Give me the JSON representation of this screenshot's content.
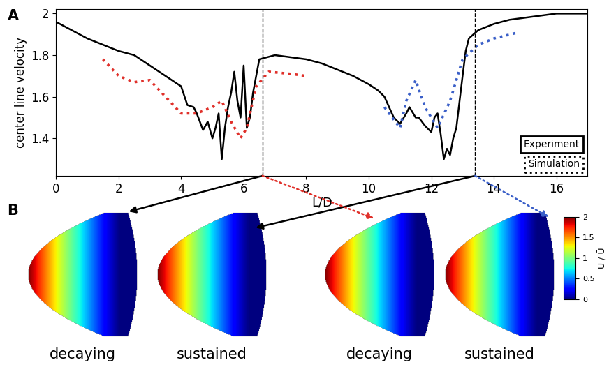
{
  "chart_data": [
    {
      "type": "line",
      "panel": "A",
      "x_label": "L/D",
      "y_label": "center line velocity",
      "xlim": [
        0,
        17
      ],
      "xticks": [
        0,
        2,
        4,
        6,
        8,
        10,
        12,
        14,
        16
      ],
      "ylim": [
        1.22,
        2.02
      ],
      "yticks": [
        1.4,
        1.6,
        1.8,
        2
      ],
      "vlines": [
        6.6,
        13.4
      ],
      "legend": "lower right",
      "series": [
        {
          "name": "Experiment",
          "color": "#000000",
          "line_style": "solid",
          "x": [
            0,
            0.5,
            1,
            1.5,
            2,
            2.5,
            3,
            3.3,
            3.5,
            3.8,
            4,
            4.2,
            4.4,
            4.5,
            4.7,
            4.85,
            5,
            5.1,
            5.2,
            5.3,
            5.4,
            5.5,
            5.6,
            5.7,
            5.8,
            5.9,
            6.0,
            6.1,
            6.2,
            6.3,
            6.5,
            7,
            7.5,
            8,
            8.5,
            9,
            9.5,
            10,
            10.3,
            10.5,
            10.8,
            11,
            11.2,
            11.3,
            11.5,
            11.6,
            11.8,
            12,
            12.1,
            12.2,
            12.3,
            12.4,
            12.5,
            12.6,
            12.7,
            12.8,
            13,
            13.1,
            13.2,
            13.5,
            14,
            14.5,
            15,
            15.5,
            16,
            16.5,
            17
          ],
          "values": [
            1.96,
            1.92,
            1.88,
            1.85,
            1.82,
            1.8,
            1.75,
            1.72,
            1.7,
            1.67,
            1.65,
            1.56,
            1.55,
            1.52,
            1.44,
            1.48,
            1.4,
            1.45,
            1.52,
            1.3,
            1.45,
            1.55,
            1.62,
            1.72,
            1.58,
            1.5,
            1.75,
            1.45,
            1.5,
            1.62,
            1.78,
            1.8,
            1.79,
            1.78,
            1.76,
            1.73,
            1.7,
            1.66,
            1.63,
            1.6,
            1.5,
            1.47,
            1.52,
            1.55,
            1.5,
            1.5,
            1.46,
            1.43,
            1.5,
            1.52,
            1.42,
            1.3,
            1.35,
            1.32,
            1.4,
            1.45,
            1.7,
            1.82,
            1.88,
            1.92,
            1.95,
            1.97,
            1.98,
            1.99,
            2.0,
            2.0,
            2.0
          ]
        },
        {
          "name": "Simulation",
          "color": "#e0302a",
          "line_style": "dotted",
          "x": [
            1.5,
            2,
            2.5,
            3,
            3.5,
            4,
            4.5,
            5,
            5.3,
            5.6,
            5.9,
            6.1,
            6.4,
            6.8,
            7.5,
            8
          ],
          "values": [
            1.78,
            1.7,
            1.67,
            1.68,
            1.6,
            1.52,
            1.52,
            1.55,
            1.58,
            1.48,
            1.4,
            1.45,
            1.65,
            1.72,
            1.71,
            1.7
          ]
        },
        {
          "name": "Simulation",
          "color": "#3a5fc8",
          "line_style": "dotted",
          "x": [
            10.5,
            11,
            11.2,
            11.5,
            11.8,
            12.2,
            12.6,
            13,
            13.5,
            14,
            14.8
          ],
          "values": [
            1.55,
            1.45,
            1.58,
            1.68,
            1.55,
            1.45,
            1.58,
            1.78,
            1.85,
            1.88,
            1.91
          ]
        }
      ]
    },
    {
      "type": "image",
      "panel": "B",
      "profiles": [
        "decaying",
        "sustained",
        "decaying",
        "sustained"
      ],
      "colorbar": {
        "label": "U / Ū",
        "range": [
          0,
          2
        ],
        "ticks": [
          0,
          0.5,
          1,
          1.5,
          2
        ]
      }
    }
  ]
}
